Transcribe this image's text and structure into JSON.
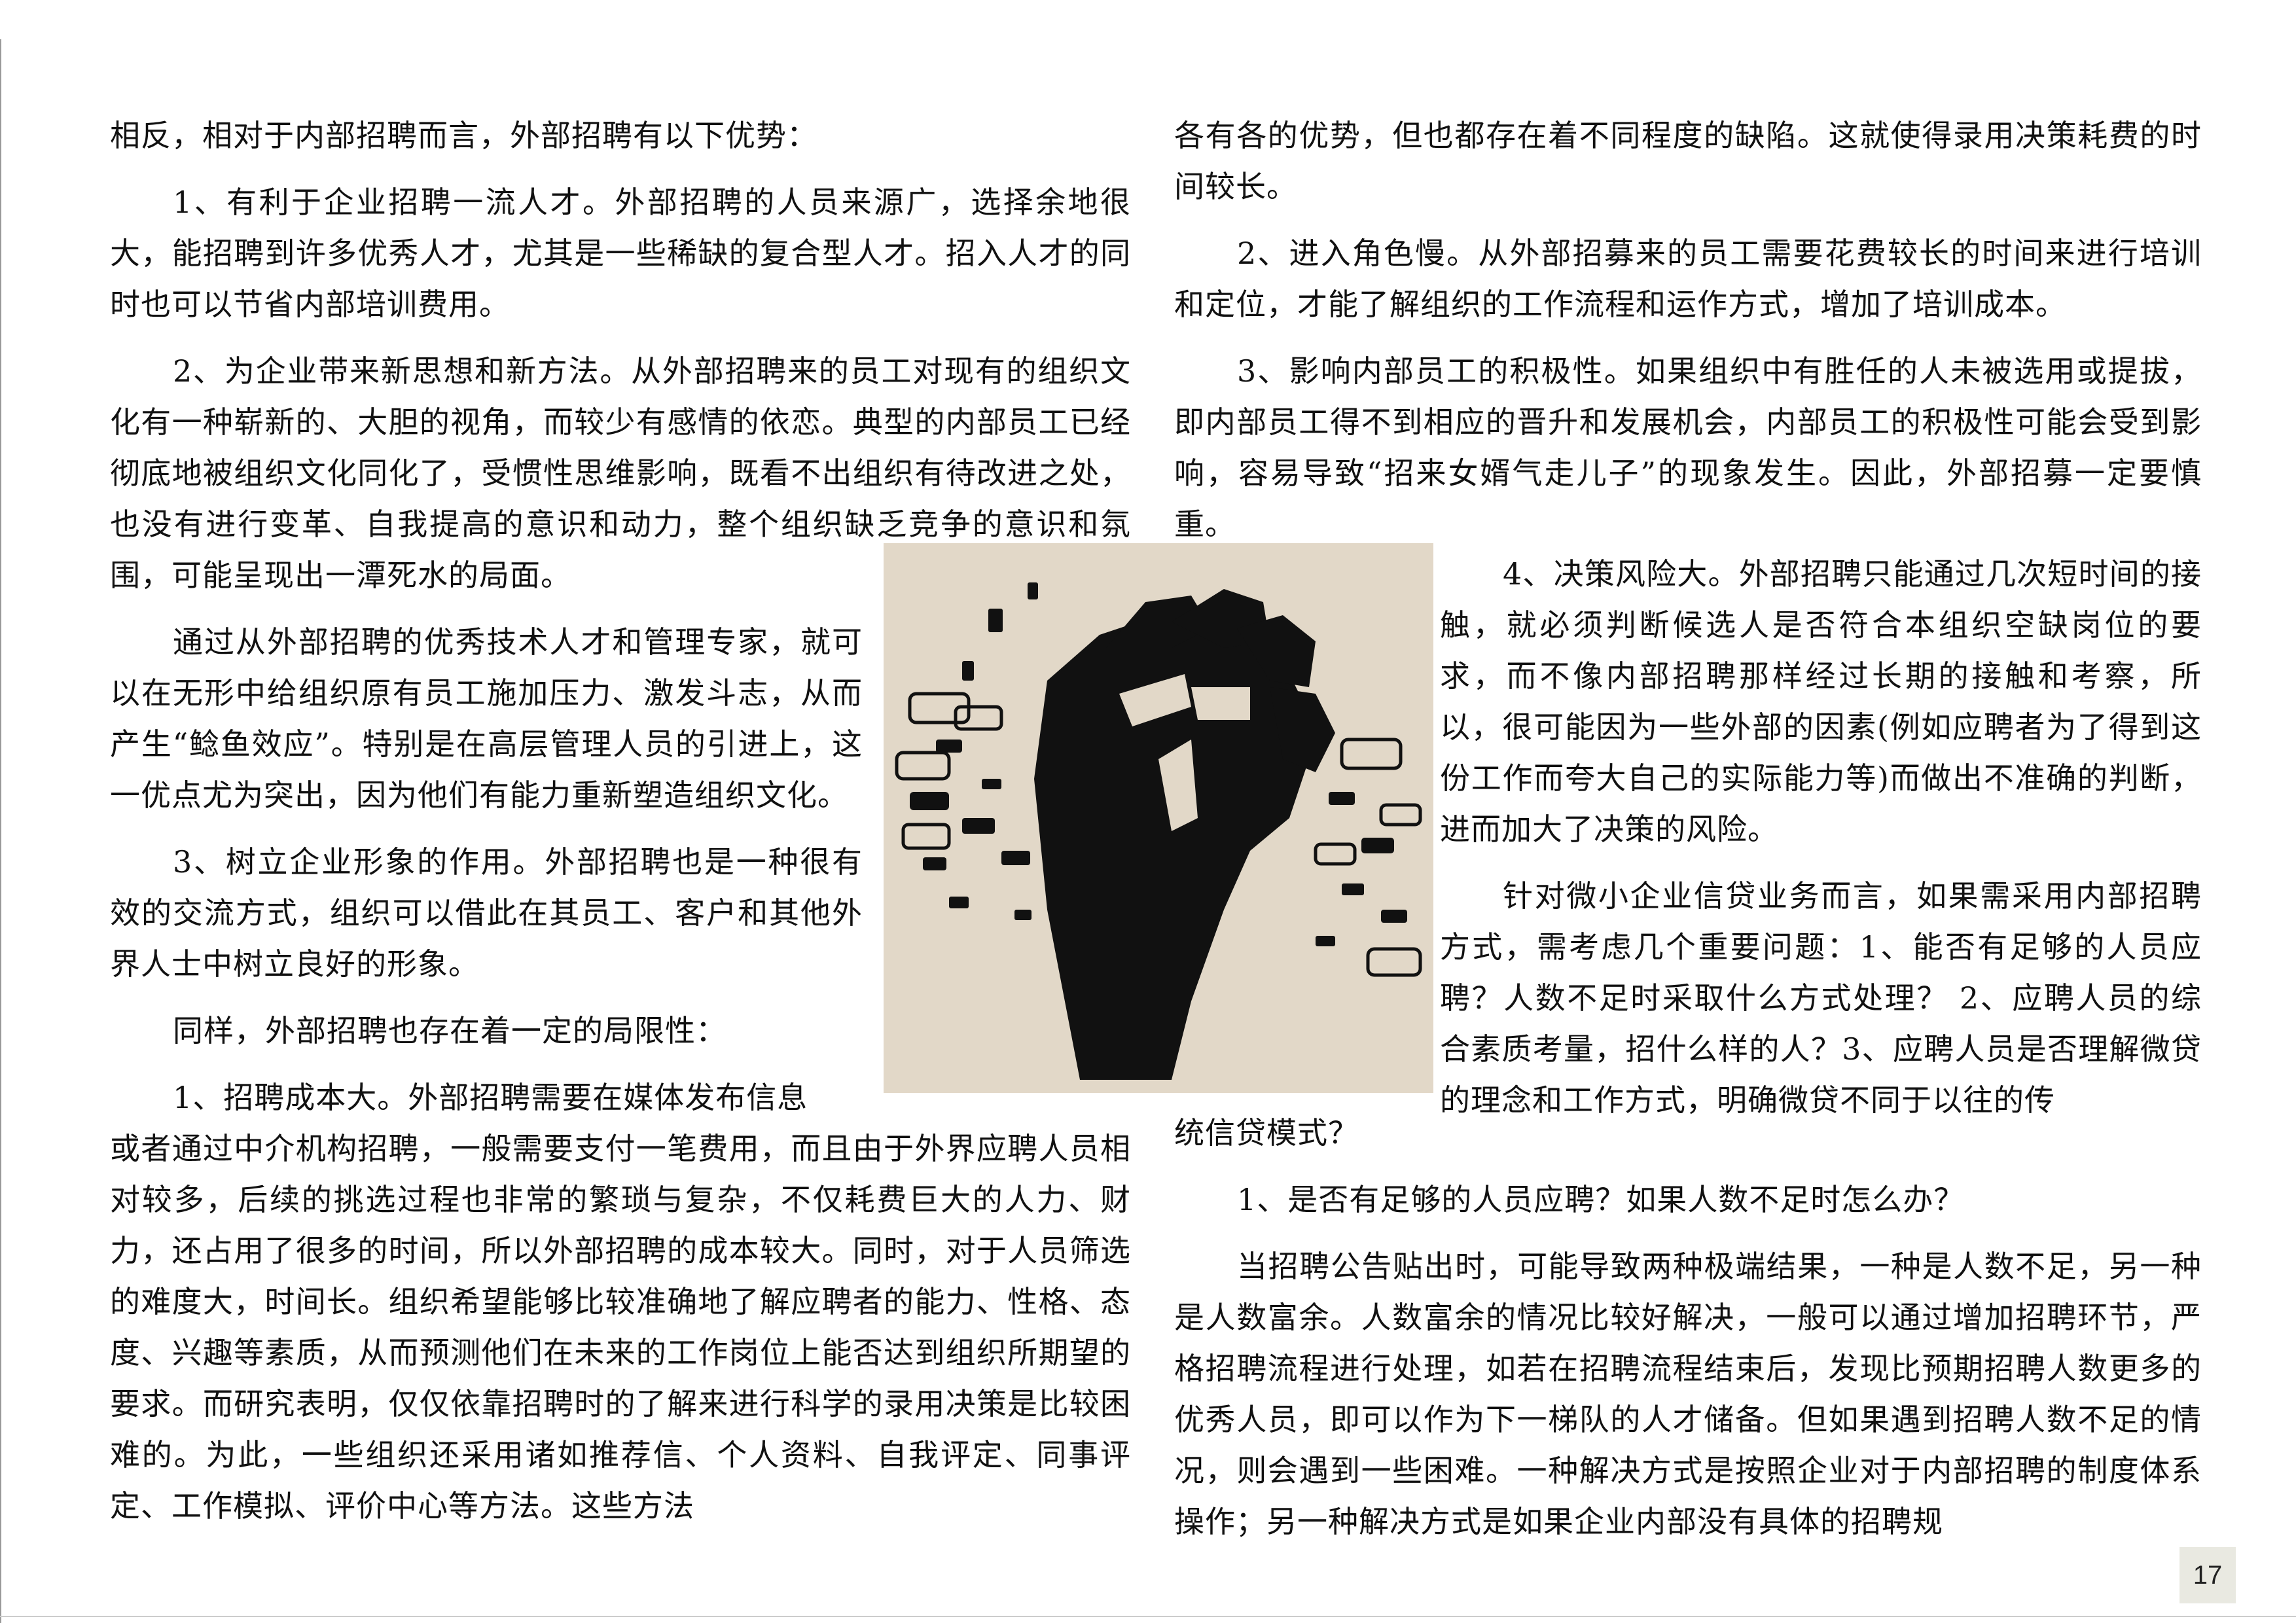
{
  "left_column": {
    "p0": "相反，相对于内部招聘而言，外部招聘有以下优势：",
    "p1": "1、有利于企业招聘一流人才。外部招聘的人员来源广，选择余地很大，能招聘到许多优秀人才，尤其是一些稀缺的复合型人才。招入人才的同时也可以节省内部培训费用。",
    "p2": "2、为企业带来新思想和新方法。从外部招聘来的员工对现有的组织文化有一种崭新的、大胆的视角，而较少有感情的依恋。典型的内部员工已经彻底地被组织文化同化了，受惯性思维影响，既看不出组织有待改进之处，也没有进行变革、自我提高的意识和动力，整个组织缺乏竞争的意识和氛围，可能呈现出一潭死水的局面。",
    "p3": "通过从外部招聘的优秀技术人才和管理专家，就可以在无形中给组织原有员工施加压力、激发斗志，从而产生“鲶鱼效应”。特别是在高层管理人员的引进上，这一优点尤为突出，因为他们有能力重新塑造组织文化。",
    "p4": "3、树立企业形象的作用。外部招聘也是一种很有效的交流方式，组织可以借此在其员工、客户和其他外界人士中树立良好的形象。",
    "p5": "同样，外部招聘也存在着一定的局限性：",
    "p6a": "1、招聘成本大。外部招聘需要在媒体发布信息",
    "p6b": "或者通过中介机构招聘，一般需要支付一笔费用，而且由于外界应聘人员相对较多，后续的挑选过程也非常的繁琐与复杂，不仅耗费巨大的人力、财力，还占用了很多的时间，所以外部招聘的成本较大。同时，对于人员筛选的难度大，时间长。组织希望能够比较准确地了解应聘者的能力、性格、态度、兴趣等素质，从而预测他们在未来的工作岗位上能否达到组织所期望的要求。而研究表明，仅仅依靠招聘时的了解来进行科学的录用决策是比较困难的。为此，一些组织还采用诸如推荐信、个人资料、自我评定、同事评定、工作模拟、评价中心等方法。这些方法"
  },
  "right_column": {
    "p0": "各有各的优势，但也都存在着不同程度的缺陷。这就使得录用决策耗费的时间较长。",
    "p1": "2、进入角色慢。从外部招募来的员工需要花费较长的时间来进行培训和定位，才能了解组织的工作流程和运作方式，增加了培训成本。",
    "p2": "3、影响内部员工的积极性。如果组织中有胜任的人未被选用或提拔，即内部员工得不到相应的晋升和发展机会，内部员工的积极性可能会受到影响，容易导致“招来女婿气走儿子”的现象发生。因此，外部招募一定要慎重。",
    "p3": "4、决策风险大。外部招聘只能通过几次短时间的接触，就必须判断候选人是否符合本组织空缺岗位的要求，而不像内部招聘那样经过长期的接触和考察，所以，很可能因为一些外部的因素(例如应聘者为了得到这份工作而夸大自己的实际能力等)而做出不准确的判断，进而加大了决策的风险。",
    "p4a": "针对微小企业信贷业务而言，如果需采用内部招聘方式，需考虑几个重要问题：1、能否有足够的人员应聘？人数不足时采取什么方式处理？ 2、应聘人员的综合素质考量，招什么样的人？3、应聘人员是否理解微贷的理念和工作方式，明确微贷不同于以往的传",
    "p4b": "统信贷模式？",
    "p5": "1、是否有足够的人员应聘？如果人数不足时怎么办？",
    "p6": "当招聘公告贴出时，可能导致两种极端结果，一种是人数不足，另一种是人数富余。人数富余的情况比较好解决，一般可以通过增加招聘环节，严格招聘流程进行处理，如若在招聘流程结束后，发现比预期招聘人数更多的优秀人员，即可以作为下一梯队的人才储备。但如果遇到招聘人数不足的情况，则会遇到一些困难。一种解决方式是按照企业对于内部招聘的制度体系操作；另一种解决方式是如果企业内部没有具体的招聘规"
  },
  "figure": {
    "icon": "raised-fist-icon",
    "background": "#e2d8c8",
    "ink": "#111111"
  },
  "page_number": "17"
}
